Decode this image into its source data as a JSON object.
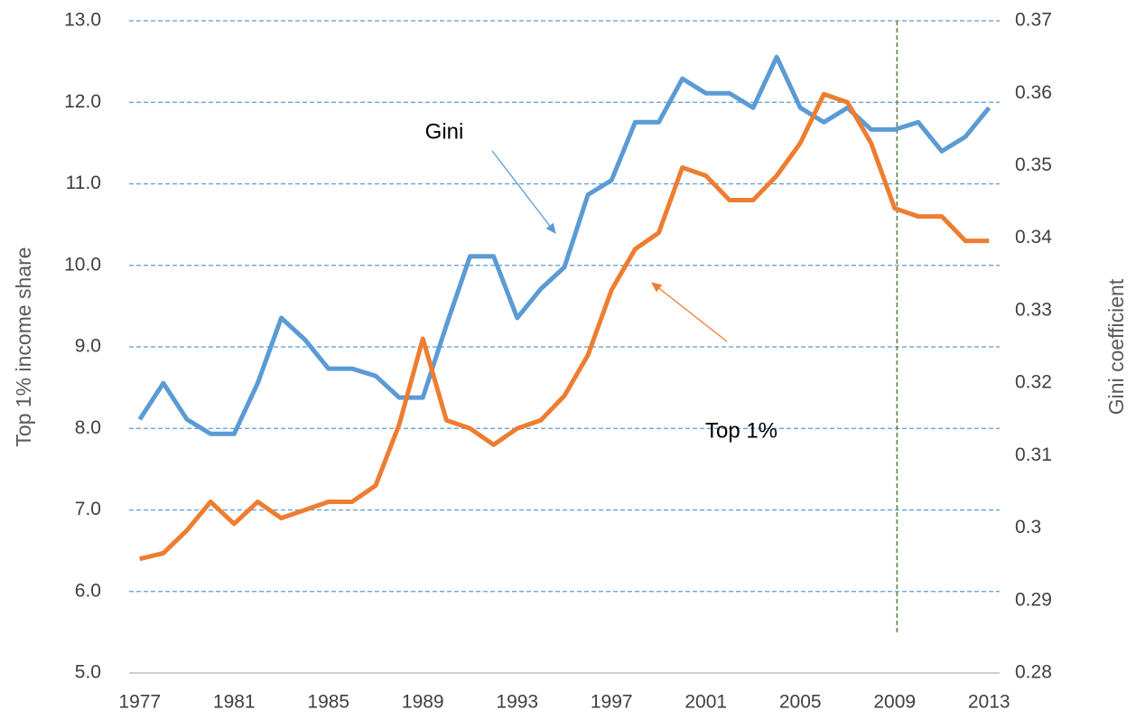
{
  "chart_data": {
    "type": "line",
    "y_label": "Top 1% income share",
    "y2_label": "Gini coefficient",
    "x": [
      1977,
      1978,
      1979,
      1980,
      1981,
      1982,
      1983,
      1984,
      1985,
      1986,
      1987,
      1988,
      1989,
      1990,
      1991,
      1992,
      1993,
      1994,
      1995,
      1996,
      1997,
      1998,
      1999,
      2000,
      2001,
      2002,
      2003,
      2004,
      2005,
      2006,
      2007,
      2008,
      2009,
      2010,
      2011,
      2012,
      2013
    ],
    "series": [
      {
        "name": "Gini",
        "color": "#5b9bd5",
        "axis": "y2",
        "values": [
          0.315,
          0.32,
          0.315,
          0.313,
          0.313,
          0.32,
          0.329,
          0.326,
          0.322,
          0.322,
          0.321,
          0.318,
          0.318,
          0.328,
          0.3375,
          0.3375,
          0.329,
          0.333,
          0.336,
          0.346,
          0.348,
          0.356,
          0.356,
          0.362,
          0.36,
          0.36,
          0.358,
          0.365,
          0.358,
          0.356,
          0.358,
          0.355,
          0.355,
          0.356,
          0.352,
          0.354,
          0.358
        ]
      },
      {
        "name": "Top 1%",
        "color": "#ed7d31",
        "values": [
          6.4,
          6.47,
          6.75,
          7.1,
          6.83,
          7.1,
          6.9,
          7.0,
          7.1,
          7.1,
          7.3,
          8.05,
          9.1,
          8.1,
          8.0,
          7.8,
          8.0,
          8.1,
          8.4,
          8.9,
          9.7,
          10.2,
          10.4,
          11.2,
          11.1,
          10.8,
          10.8,
          11.1,
          11.5,
          12.1,
          12.0,
          11.5,
          10.7,
          10.6,
          10.6,
          10.3,
          10.3
        ]
      }
    ],
    "xlim": [
      1976.55,
      2013.45
    ],
    "xticks": [
      1977,
      1981,
      1985,
      1989,
      1993,
      1997,
      2001,
      2005,
      2009,
      2013
    ],
    "ylim": [
      5,
      13
    ],
    "yticks": [
      {
        "value": 5,
        "label": "5.0"
      },
      {
        "value": 6,
        "label": "6.0"
      },
      {
        "value": 7,
        "label": "7.0"
      },
      {
        "value": 8,
        "label": "8.0"
      },
      {
        "value": 9,
        "label": "9.0"
      },
      {
        "value": 10,
        "label": "10.0"
      },
      {
        "value": 11,
        "label": "11.0"
      },
      {
        "value": 12,
        "label": "12.0"
      },
      {
        "value": 13,
        "label": "13.0"
      }
    ],
    "y2lim": [
      0.28,
      0.37
    ],
    "y2ticks": [
      0.28,
      0.29,
      0.3,
      0.31,
      0.32,
      0.33,
      0.34,
      0.35,
      0.36,
      0.37
    ],
    "grid": true,
    "grid_color": "#5b9bd5",
    "vline": {
      "x": 2009.1,
      "color": "#548235"
    },
    "annotations": [
      {
        "text": "Gini"
      },
      {
        "text": "Top 1%"
      }
    ]
  }
}
